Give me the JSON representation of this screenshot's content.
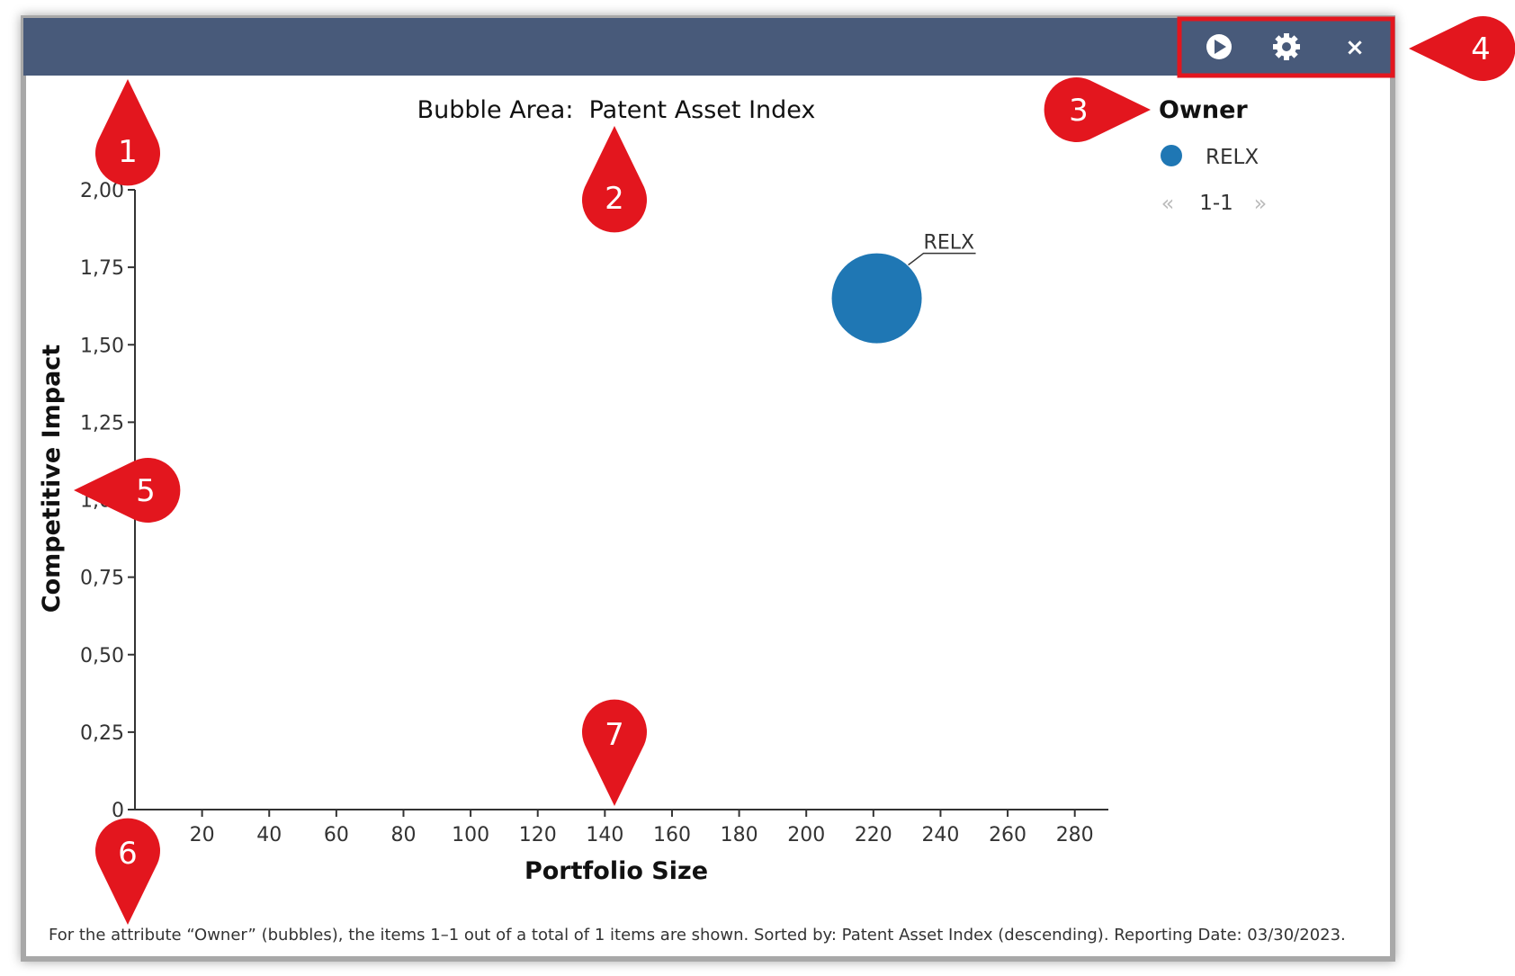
{
  "toolbar": {
    "play_icon": "play-icon",
    "settings_icon": "gear-icon",
    "close_icon": "close-icon",
    "close_glyph": "×",
    "background": "#485a7a"
  },
  "legend": {
    "title": "Owner",
    "items": [
      {
        "label": "RELX",
        "color": "#1f77b4"
      }
    ],
    "pagination": {
      "prev_glyph": "«",
      "range": "1-1",
      "next_glyph": "»"
    }
  },
  "footnote": "For the attribute “Owner” (bubbles), the items 1–1 out of a total of 1 items are shown. Sorted by: Patent Asset Index (descending). Reporting Date: 03/30/2023.",
  "callouts": [
    "1",
    "2",
    "3",
    "4",
    "5",
    "6",
    "7"
  ],
  "colors": {
    "callout_red": "#e3161e",
    "bubble": "#1f77b4",
    "frame_border": "#9a9a9a"
  },
  "chart_data": {
    "type": "scatter",
    "title": "Bubble Area:  Patent Asset Index",
    "xlabel": "Portfolio Size",
    "ylabel": "Competitive Impact",
    "xlim": [
      0,
      290
    ],
    "ylim": [
      0,
      2.0
    ],
    "x_ticks": [
      20,
      40,
      60,
      80,
      100,
      120,
      140,
      160,
      180,
      200,
      220,
      240,
      260,
      280
    ],
    "x_tick_labels": [
      "20",
      "40",
      "60",
      "80",
      "100",
      "120",
      "140",
      "160",
      "180",
      "200",
      "220",
      "240",
      "260",
      "280"
    ],
    "y_ticks": [
      0,
      0.25,
      0.5,
      0.75,
      1.0,
      1.25,
      1.5,
      1.75,
      2.0
    ],
    "y_tick_labels": [
      "0",
      "0,25",
      "0,50",
      "0,75",
      "1,00",
      "1,25",
      "1,50",
      "1,75",
      "2,00"
    ],
    "grid": false,
    "legend_position": "top-right",
    "series": [
      {
        "name": "RELX",
        "color": "#1f77b4",
        "points": [
          {
            "x": 221,
            "y": 1.65,
            "label": "RELX"
          }
        ]
      }
    ]
  }
}
